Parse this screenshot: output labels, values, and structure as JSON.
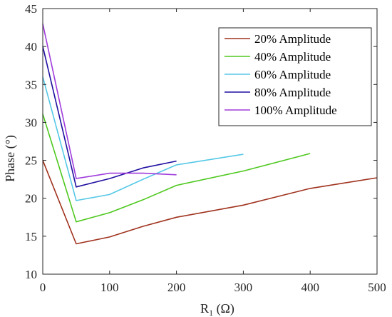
{
  "chart_data": {
    "type": "line",
    "title": "",
    "xlabel_main": "R",
    "xlabel_sub": "1",
    "xlabel_unit": " (Ω)",
    "ylabel": "Phase (°)",
    "xlim": [
      0,
      500
    ],
    "ylim": [
      10,
      45
    ],
    "xticks": [
      0,
      100,
      200,
      300,
      400,
      500
    ],
    "yticks": [
      10,
      15,
      20,
      25,
      30,
      35,
      40,
      45
    ],
    "grid": false,
    "legend_position": "top-right",
    "series": [
      {
        "name": "20% Amplitude",
        "color": "#a0321e",
        "x": [
          0,
          50,
          100,
          150,
          200,
          300,
          400,
          500
        ],
        "y": [
          25.0,
          14.0,
          14.9,
          16.3,
          17.5,
          19.1,
          21.3,
          22.7
        ]
      },
      {
        "name": "40% Amplitude",
        "color": "#4dc81e",
        "x": [
          0,
          50,
          100,
          150,
          200,
          300,
          400
        ],
        "y": [
          31.1,
          16.9,
          18.1,
          19.8,
          21.7,
          23.6,
          25.9
        ]
      },
      {
        "name": "60% Amplitude",
        "color": "#55c8e6",
        "x": [
          0,
          50,
          100,
          150,
          200,
          300
        ],
        "y": [
          36.0,
          19.7,
          20.5,
          22.5,
          24.4,
          25.8
        ]
      },
      {
        "name": "80% Amplitude",
        "color": "#1e0ea0",
        "x": [
          0,
          50,
          100,
          150,
          200
        ],
        "y": [
          40.0,
          21.5,
          22.6,
          24.0,
          24.9
        ]
      },
      {
        "name": "100% Amplitude",
        "color": "#a03cdc",
        "x": [
          0,
          50,
          100,
          150,
          200
        ],
        "y": [
          43.0,
          22.6,
          23.3,
          23.3,
          23.1
        ]
      }
    ]
  }
}
